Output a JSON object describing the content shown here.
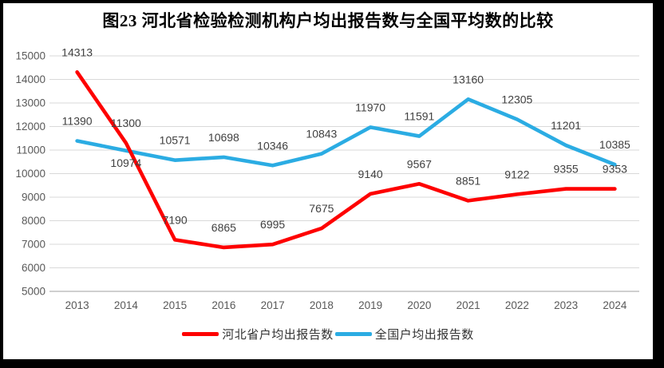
{
  "chart_data": {
    "type": "line",
    "title": "图23  河北省检验检测机构户均出报告数与全国平均数的比较",
    "categories": [
      "2013",
      "2014",
      "2015",
      "2016",
      "2017",
      "2018",
      "2019",
      "2020",
      "2021",
      "2022",
      "2023",
      "2024"
    ],
    "series": [
      {
        "id": "hebei",
        "name": "河北省户均出报告数",
        "color": "#fe0000",
        "values": [
          14313,
          11300,
          7190,
          6865,
          6995,
          7675,
          9140,
          9567,
          8851,
          9122,
          9355,
          9353
        ],
        "labels_below_indices": []
      },
      {
        "id": "national",
        "name": "全国户均出报告数",
        "color": "#2bace3",
        "values": [
          11390,
          10974,
          10571,
          10698,
          10346,
          10843,
          11970,
          11591,
          13160,
          12305,
          11201,
          10385
        ],
        "labels_below_indices": [
          1
        ]
      }
    ],
    "xlabel": "",
    "ylabel": "",
    "ylim": [
      5000,
      15000
    ],
    "yticks": [
      5000,
      6000,
      7000,
      8000,
      9000,
      10000,
      11000,
      12000,
      13000,
      14000,
      15000
    ],
    "grid": true,
    "legend_position": "bottom",
    "colors": {
      "gridline": "#d9d9d9",
      "axis_line": "#bfbfbf",
      "tick_label": "#595959",
      "data_label": "#404040",
      "legend_text": "#333333",
      "frame": "#000000",
      "background": "#ffffff"
    }
  }
}
